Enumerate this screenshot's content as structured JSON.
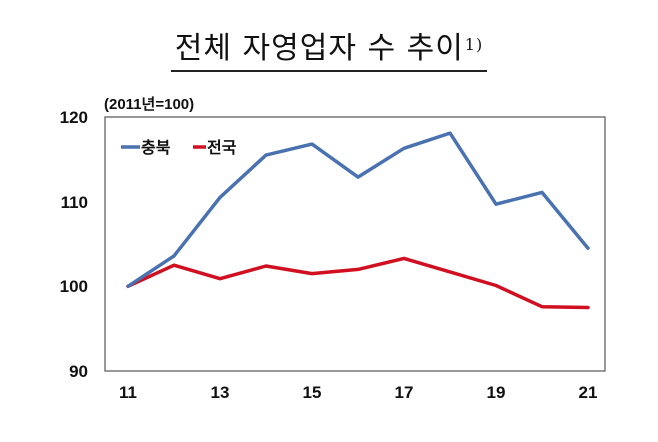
{
  "title": {
    "text": "전체 자영업자 수 추이",
    "footnote_mark": "1)"
  },
  "unit_label": "(2011년=100)",
  "legend": [
    {
      "label": "충북",
      "color": "#4a72b0"
    },
    {
      "label": "전국",
      "color": "#d01020"
    }
  ],
  "y_ticks": [
    "120",
    "110",
    "100",
    "90"
  ],
  "x_ticks": [
    "11",
    "13",
    "15",
    "17",
    "19",
    "21"
  ],
  "chart_data": {
    "type": "line",
    "title": "전체 자영업자 수 추이",
    "subtitle": "(2011년=100)",
    "xlabel": "",
    "ylabel": "",
    "x": [
      "11",
      "12",
      "13",
      "14",
      "15",
      "16",
      "17",
      "18",
      "19",
      "20",
      "21"
    ],
    "series": [
      {
        "name": "충북",
        "color": "#4a72b0",
        "values": [
          100.0,
          103.6,
          110.5,
          115.5,
          116.8,
          112.9,
          116.3,
          118.1,
          109.7,
          111.1,
          104.5
        ]
      },
      {
        "name": "전국",
        "color": "#d01020",
        "values": [
          100.0,
          102.5,
          100.9,
          102.4,
          101.5,
          102.0,
          103.3,
          101.7,
          100.1,
          97.6,
          97.5
        ]
      }
    ],
    "ylim": [
      90,
      120
    ],
    "yticks": [
      90,
      100,
      110,
      120
    ],
    "xticks_labeled": [
      "11",
      "13",
      "15",
      "17",
      "19",
      "21"
    ],
    "grid": false,
    "legend_position": "top-left inside plot"
  }
}
